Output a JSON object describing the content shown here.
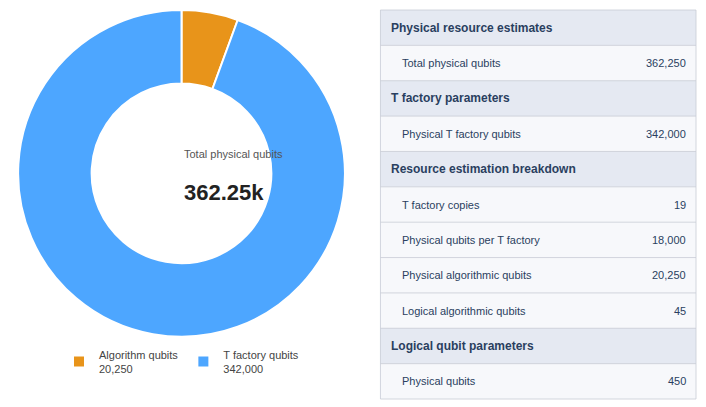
{
  "chart_data": {
    "type": "pie",
    "categories": [
      "Algorithm qubits",
      "T factory qubits"
    ],
    "values": [
      20250,
      342000
    ],
    "value_labels": [
      "20,250",
      "342,000"
    ],
    "colors": [
      "#e8941a",
      "#4da6ff"
    ],
    "legend": "bottom",
    "center_title": "Total physical qubits",
    "center_value": "362.25k",
    "table": [
      {
        "section": true,
        "label": "Physical resource estimates"
      },
      {
        "section": false,
        "label": "Total physical qubits",
        "value": "362,250"
      },
      {
        "section": true,
        "label": "T factory parameters"
      },
      {
        "section": false,
        "label": "Physical T factory qubits",
        "value": "342,000"
      },
      {
        "section": true,
        "label": "Resource estimation breakdown"
      },
      {
        "section": false,
        "label": "T factory copies",
        "value": "19"
      },
      {
        "section": false,
        "label": "Physical qubits per T factory",
        "value": "18,000"
      },
      {
        "section": false,
        "label": "Physical algorithmic qubits",
        "value": "20,250"
      },
      {
        "section": false,
        "label": "Logical algorithmic qubits",
        "value": "45"
      },
      {
        "section": true,
        "label": "Logical qubit parameters"
      },
      {
        "section": false,
        "label": "Physical qubits",
        "value": "450"
      }
    ]
  }
}
